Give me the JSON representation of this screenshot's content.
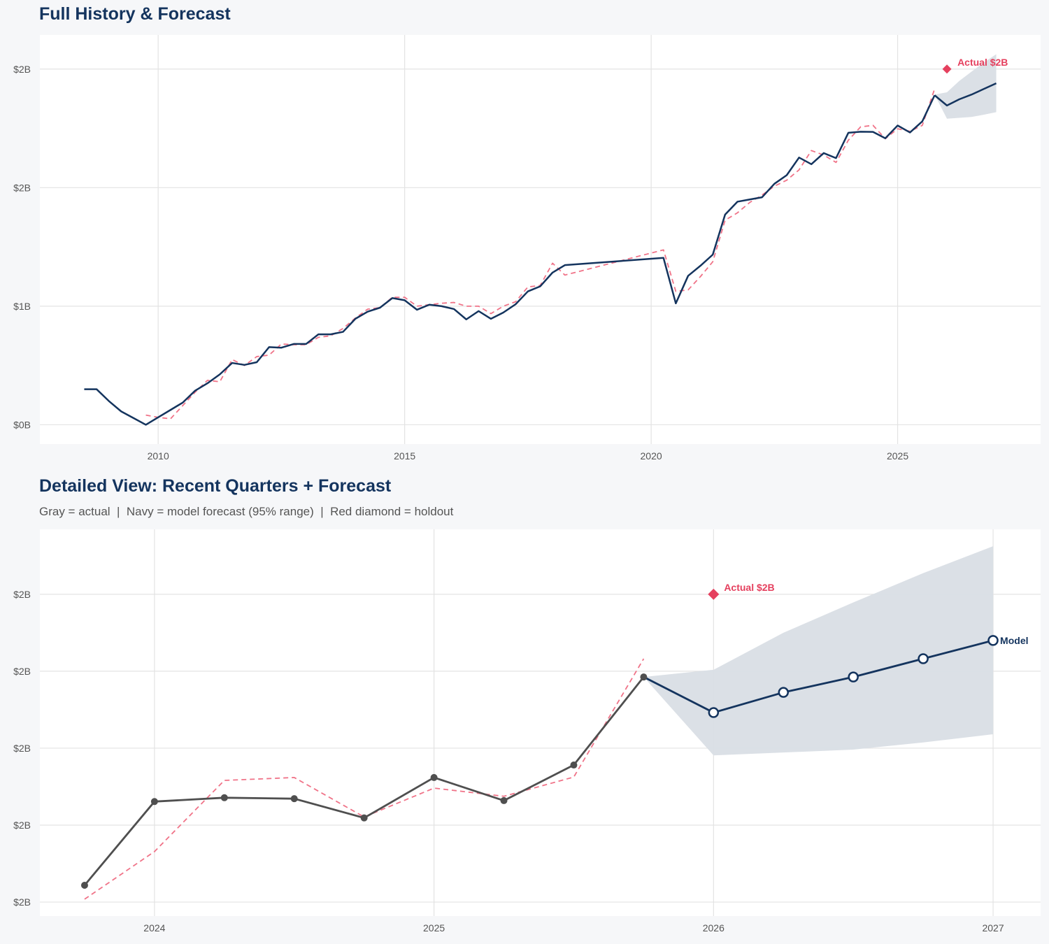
{
  "colors": {
    "navy": "#14345e",
    "red": "#e5405e",
    "fitted": "#f07388",
    "gray": "#4f4f4f",
    "band": "#d9dee5",
    "grid": "#e3e3e3"
  },
  "chart_data": [
    {
      "type": "line",
      "title": "Full History & Forecast",
      "xlim": [
        2007.6,
        2027.9
      ],
      "ylim": [
        -0.13,
        2.63
      ],
      "grid": true,
      "x_ticks": [
        2010,
        2015,
        2020,
        2025
      ],
      "x_tick_labels": [
        "2010",
        "2015",
        "2020",
        "2025"
      ],
      "y_ticks": [
        0,
        0.8,
        1.6,
        2.4
      ],
      "y_tick_labels": [
        "$0B",
        "$1B",
        "$2B",
        "$2B"
      ],
      "history": {
        "x": [
          2008.5,
          2008.75,
          2009,
          2009.25,
          2009.5,
          2009.75,
          2010,
          2010.25,
          2010.5,
          2010.75,
          2011,
          2011.25,
          2011.5,
          2011.75,
          2012,
          2012.25,
          2012.5,
          2012.75,
          2013,
          2013.25,
          2013.5,
          2013.75,
          2014,
          2014.25,
          2014.5,
          2014.75,
          2015,
          2015.25,
          2015.5,
          2015.75,
          2016,
          2016.25,
          2016.5,
          2016.75,
          2017,
          2017.25,
          2017.5,
          2017.75,
          2018,
          2018.25,
          2020.25,
          2020.5,
          2020.75,
          2021,
          2021.25,
          2021.5,
          2021.75,
          2022,
          2022.25,
          2022.5,
          2022.75,
          2023,
          2023.25,
          2023.5,
          2023.75,
          2024,
          2024.25,
          2024.5,
          2024.75,
          2025,
          2025.25,
          2025.5,
          2025.75
        ],
        "y": [
          0.24,
          0.24,
          0.16,
          0.09,
          0.045,
          0.0,
          0.05,
          0.1,
          0.15,
          0.23,
          0.28,
          0.34,
          0.417,
          0.404,
          0.422,
          0.524,
          0.52,
          0.545,
          0.545,
          0.61,
          0.61,
          0.627,
          0.715,
          0.763,
          0.79,
          0.855,
          0.84,
          0.776,
          0.81,
          0.8,
          0.781,
          0.711,
          0.767,
          0.715,
          0.757,
          0.813,
          0.9,
          0.934,
          1.027,
          1.077,
          1.126,
          0.819,
          1.005,
          1.073,
          1.148,
          1.418,
          1.505,
          1.52,
          1.535,
          1.626,
          1.684,
          1.803,
          1.758,
          1.833,
          1.799,
          1.97,
          1.977,
          1.976,
          1.933,
          2.019,
          1.972,
          2.047,
          2.223
        ]
      },
      "fitted": {
        "x": [
          2009.75,
          2010,
          2010.25,
          2010.5,
          2010.75,
          2011,
          2011.25,
          2011.5,
          2011.75,
          2012,
          2012.25,
          2012.5,
          2012.75,
          2013,
          2013.25,
          2013.5,
          2013.75,
          2014,
          2014.25,
          2014.5,
          2014.75,
          2015,
          2015.25,
          2015.5,
          2015.75,
          2016,
          2016.25,
          2016.5,
          2016.75,
          2017,
          2017.25,
          2017.5,
          2017.75,
          2018,
          2018.25,
          2020.25,
          2020.5,
          2020.75,
          2021,
          2021.25,
          2021.5,
          2021.75,
          2022,
          2022.25,
          2022.5,
          2022.75,
          2023,
          2023.25,
          2023.5,
          2023.75,
          2024,
          2024.25,
          2024.5,
          2024.75,
          2025,
          2025.25,
          2025.5,
          2025.75
        ],
        "y": [
          0.065,
          0.05,
          0.04,
          0.13,
          0.22,
          0.3,
          0.29,
          0.44,
          0.4,
          0.46,
          0.47,
          0.545,
          0.54,
          0.54,
          0.59,
          0.6,
          0.65,
          0.72,
          0.78,
          0.79,
          0.86,
          0.86,
          0.8,
          0.81,
          0.82,
          0.825,
          0.8,
          0.8,
          0.75,
          0.8,
          0.83,
          0.93,
          0.94,
          1.09,
          1.01,
          1.18,
          0.9,
          0.91,
          1.0,
          1.1,
          1.38,
          1.43,
          1.5,
          1.55,
          1.61,
          1.65,
          1.72,
          1.85,
          1.82,
          1.77,
          1.92,
          2.01,
          2.02,
          1.93,
          1.997,
          1.98,
          2.02,
          2.266
        ]
      },
      "forecast": {
        "x": [
          2025.75,
          2026,
          2026.25,
          2026.5,
          2026.75,
          2027
        ],
        "y": [
          2.223,
          2.154,
          2.196,
          2.228,
          2.266,
          2.304
        ]
      },
      "band": {
        "x": [
          2025.75,
          2026,
          2026.25,
          2026.5,
          2026.75,
          2027
        ],
        "lower": [
          2.228,
          2.065,
          2.071,
          2.077,
          2.092,
          2.109
        ],
        "upper": [
          2.228,
          2.243,
          2.32,
          2.383,
          2.444,
          2.5
        ]
      },
      "holdout": {
        "x": 2026.0,
        "y": 2.4,
        "label": "Actual $2B"
      }
    },
    {
      "type": "line",
      "title": "Detailed View: Recent Quarters + Forecast",
      "subtitle": "Gray = actual  |  Navy = model forecast (95% range)  |  Red diamond = holdout",
      "xlim": [
        2023.59,
        2027.17
      ],
      "ylim": [
        1.731,
        2.535
      ],
      "grid": true,
      "x_ticks": [
        2024,
        2025,
        2026,
        2027
      ],
      "x_tick_labels": [
        "2024",
        "2025",
        "2026",
        "2027"
      ],
      "y_ticks": [
        1.76,
        1.92,
        2.08,
        2.24,
        2.4
      ],
      "y_tick_labels": [
        "$2B",
        "$2B",
        "$2B",
        "$2B",
        "$2B"
      ],
      "history": {
        "x": [
          2023.75,
          2024,
          2024.25,
          2024.5,
          2024.75,
          2025,
          2025.25,
          2025.5,
          2025.75
        ],
        "y": [
          1.795,
          1.969,
          1.977,
          1.975,
          1.935,
          2.019,
          1.971,
          2.045,
          2.228
        ]
      },
      "fitted": {
        "x": [
          2023.75,
          2024,
          2024.25,
          2024.5,
          2024.75,
          2025,
          2025.25,
          2025.5,
          2025.75
        ],
        "y": [
          1.766,
          1.865,
          2.013,
          2.019,
          1.937,
          1.997,
          1.98,
          2.02,
          2.266
        ]
      },
      "forecast": {
        "x": [
          2025.75,
          2026,
          2026.25,
          2026.5,
          2026.75,
          2027
        ],
        "y": [
          2.228,
          2.154,
          2.196,
          2.228,
          2.266,
          2.304
        ],
        "label": "Model"
      },
      "band": {
        "x": [
          2025.75,
          2026,
          2026.25,
          2026.5,
          2026.75,
          2027
        ],
        "lower": [
          2.228,
          2.065,
          2.071,
          2.077,
          2.092,
          2.109
        ],
        "upper": [
          2.228,
          2.243,
          2.32,
          2.383,
          2.444,
          2.5
        ]
      },
      "holdout": {
        "x": 2026.0,
        "y": 2.4,
        "label": "Actual $2B"
      }
    }
  ]
}
